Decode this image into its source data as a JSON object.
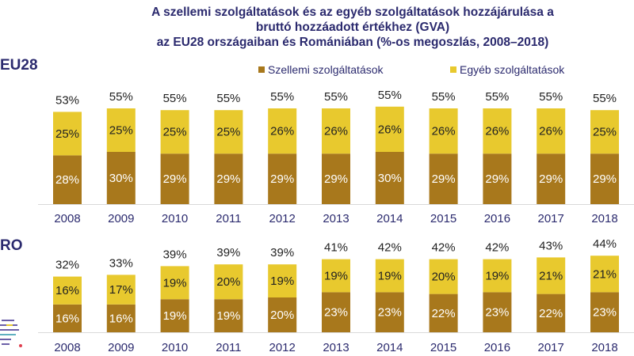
{
  "chart_data": [
    {
      "type": "bar",
      "stacked": true,
      "title": [
        "A szellemi szolgáltatások és az egyéb szolgáltatások hozzájárulása a",
        "bruttó hozzáadott értékhez (GVA)",
        "az EU28 országaiban és Romániában  (%-os megoszlás, 2008–2018)"
      ],
      "panel": "EU28",
      "categories": [
        "2008",
        "2009",
        "2010",
        "2011",
        "2012",
        "2013",
        "2014",
        "2015",
        "2016",
        "2017",
        "2018"
      ],
      "series": [
        {
          "name": "Szellemi szolgáltatások",
          "color": "#A8781C",
          "values": [
            28,
            30,
            29,
            29,
            29,
            29,
            30,
            29,
            29,
            29,
            29
          ]
        },
        {
          "name": "Egyéb szolgáltatások",
          "color": "#E8C92E",
          "values": [
            25,
            25,
            25,
            25,
            26,
            26,
            26,
            26,
            26,
            26,
            25
          ]
        }
      ],
      "totals": [
        53,
        55,
        55,
        55,
        55,
        55,
        55,
        55,
        55,
        55,
        55
      ],
      "legend": "top-right",
      "grid": false
    },
    {
      "type": "bar",
      "stacked": true,
      "panel": "RO",
      "categories": [
        "2008",
        "2009",
        "2010",
        "2011",
        "2012",
        "2013",
        "2014",
        "2015",
        "2016",
        "2017",
        "2018"
      ],
      "series": [
        {
          "name": "Szellemi szolgáltatások",
          "color": "#A8781C",
          "values": [
            16,
            16,
            19,
            19,
            20,
            23,
            23,
            22,
            23,
            22,
            23
          ]
        },
        {
          "name": "Egyéb szolgáltatások",
          "color": "#E8C92E",
          "values": [
            16,
            17,
            19,
            20,
            19,
            19,
            19,
            20,
            19,
            21,
            21
          ]
        }
      ],
      "totals": [
        32,
        33,
        39,
        39,
        39,
        41,
        42,
        42,
        42,
        43,
        44
      ],
      "grid": false
    }
  ]
}
